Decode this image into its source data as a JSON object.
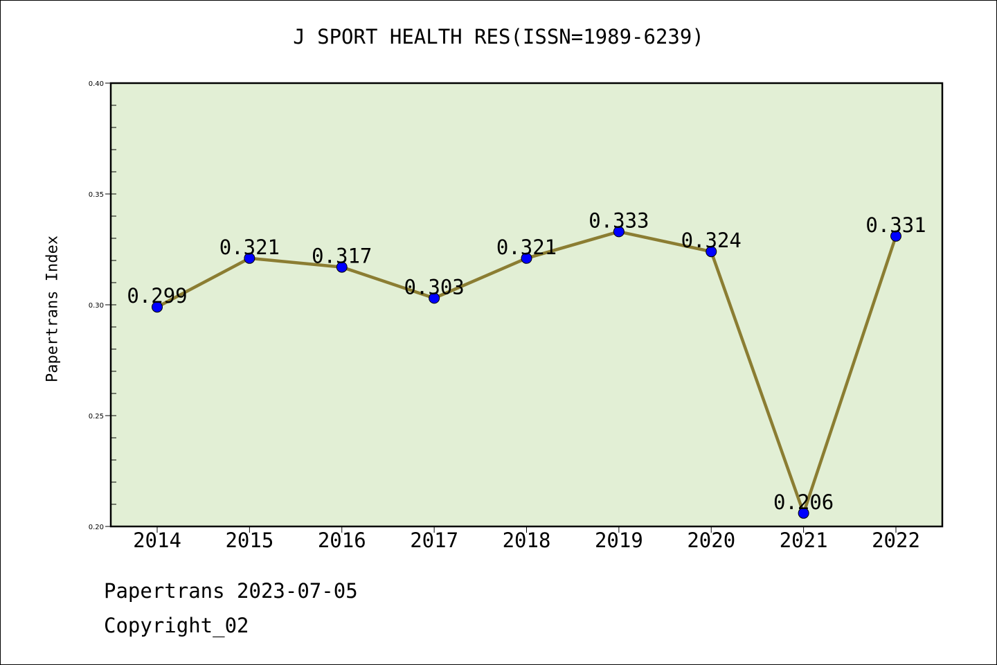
{
  "chart_data": {
    "type": "line",
    "title": "J SPORT HEALTH RES(ISSN=1989-6239)",
    "xlabel": "",
    "ylabel": "Papertrans Index",
    "categories": [
      "2014",
      "2015",
      "2016",
      "2017",
      "2018",
      "2019",
      "2020",
      "2021",
      "2022"
    ],
    "series": [
      {
        "values": [
          0.299,
          0.321,
          0.317,
          0.303,
          0.321,
          0.333,
          0.324,
          0.206,
          0.331
        ],
        "data_labels": [
          "0.299",
          "0.321",
          "0.317",
          "0.303",
          "0.321",
          "0.333",
          "0.324",
          "0.206",
          "0.331"
        ],
        "line_color": "#8b7d32",
        "marker_color": "#0000ff"
      }
    ],
    "ylim": [
      0.2,
      0.4
    ],
    "y_ticks": [
      "0.20",
      "0.25",
      "0.30",
      "0.35",
      "0.40"
    ],
    "y_tick_values": [
      0.2,
      0.25,
      0.3,
      0.35,
      0.4
    ],
    "y_minor_step": 0.01,
    "grid": false,
    "legend": "none",
    "plot_background": "#e2efd5"
  },
  "footer": {
    "date_line": "Papertrans 2023-07-05",
    "copyright_line": "Copyright_02"
  }
}
